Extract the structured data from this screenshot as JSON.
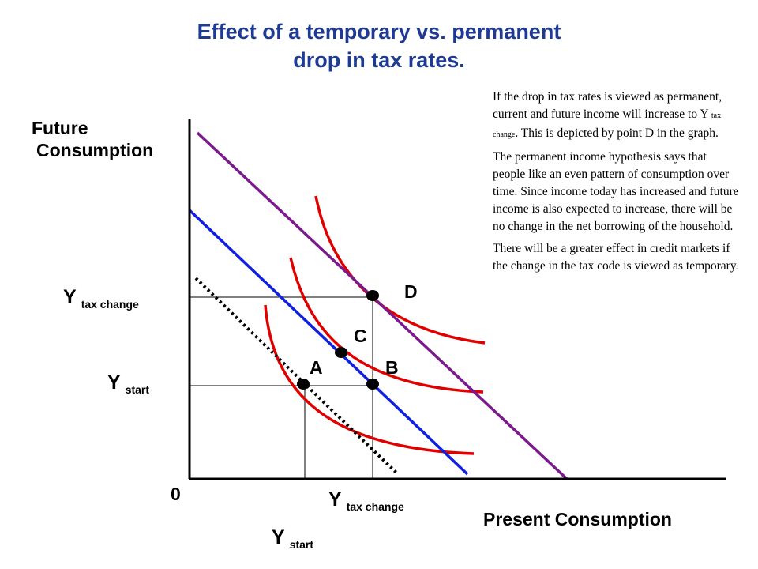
{
  "title": {
    "line1": "Effect of a temporary vs. permanent",
    "line2": "drop in tax rates."
  },
  "axes": {
    "y_label_line1": "Future",
    "y_label_line2": "Consumption",
    "x_label": "Present Consumption",
    "origin": "0"
  },
  "y_ticks": {
    "tax_change_main": "Y",
    "tax_change_sub": "tax change",
    "start_main": "Y",
    "start_sub": "start"
  },
  "x_ticks": {
    "tax_change_main": "Y",
    "tax_change_sub": "tax change",
    "start_main": "Y",
    "start_sub": "start"
  },
  "points": {
    "A": "A",
    "B": "B",
    "C": "C",
    "D": "D"
  },
  "note": {
    "p1_before": "If the drop in tax rates is viewed as permanent, current  and future income will increase to Y ",
    "p1_sub": "tax change",
    "p1_after": ". This is depicted by point D in the graph.",
    "p2": "The permanent income hypothesis says that people like an even pattern of consumption over time. Since income today has increased and future income is also expected to increase, there will be no change in the net borrowing of the household.",
    "p3": "There will be a greater effect in credit markets if the change in the tax code is viewed as temporary."
  },
  "colors": {
    "title": "#1f3a93",
    "budget_line_purple": "#7b1a8c",
    "budget_line_blue": "#1020e0",
    "indifference_red": "#e00000",
    "dotted_line": "#000000"
  }
}
